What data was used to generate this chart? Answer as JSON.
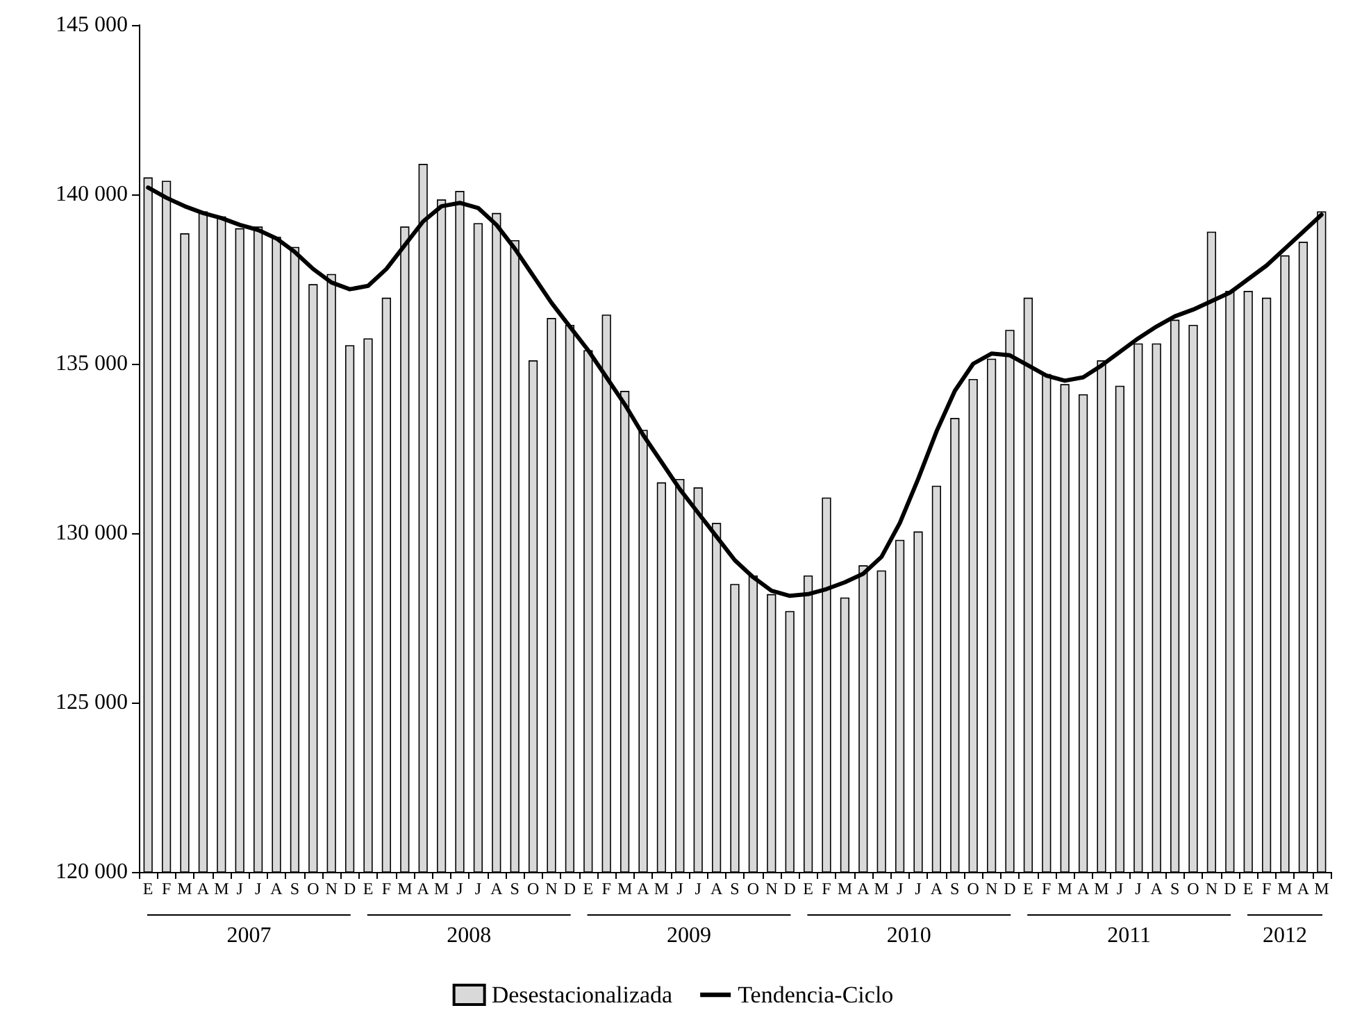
{
  "chart_data": {
    "type": "bar",
    "categories": [
      "E",
      "F",
      "M",
      "A",
      "M",
      "J",
      "J",
      "A",
      "S",
      "O",
      "N",
      "D",
      "E",
      "F",
      "M",
      "A",
      "M",
      "J",
      "J",
      "A",
      "S",
      "O",
      "N",
      "D",
      "E",
      "F",
      "M",
      "A",
      "M",
      "J",
      "J",
      "A",
      "S",
      "O",
      "N",
      "D",
      "E",
      "F",
      "M",
      "A",
      "M",
      "J",
      "J",
      "A",
      "S",
      "O",
      "N",
      "D",
      "E",
      "F",
      "M",
      "A",
      "M",
      "J",
      "J",
      "A",
      "S",
      "O",
      "N",
      "D",
      "E",
      "F",
      "M",
      "A",
      "M"
    ],
    "series": [
      {
        "name": "Desestacionalizada",
        "color": "#d9d9d9",
        "values": [
          140500,
          140400,
          138850,
          139500,
          139350,
          139000,
          139050,
          138750,
          138450,
          137350,
          137650,
          135550,
          135750,
          136950,
          139050,
          140900,
          139850,
          140100,
          139150,
          139450,
          138650,
          135100,
          136350,
          136150,
          135400,
          136450,
          134200,
          133050,
          131500,
          131600,
          131350,
          130300,
          128500,
          128750,
          128200,
          127700,
          128750,
          131050,
          128100,
          129050,
          128900,
          129800,
          130050,
          131400,
          133400,
          134550,
          135150,
          136000,
          136950,
          134700,
          134400,
          134100,
          135100,
          134350,
          135600,
          135600,
          136300,
          136150,
          138900,
          137150,
          137150,
          136950,
          138200,
          138600,
          139500
        ]
      },
      {
        "name": "Tendencia-Ciclo",
        "type": "line",
        "color": "#000000",
        "values": [
          140200,
          139900,
          139650,
          139450,
          139300,
          139100,
          138950,
          138700,
          138300,
          137800,
          137400,
          137200,
          137300,
          137800,
          138500,
          139200,
          139650,
          139750,
          139600,
          139100,
          138400,
          137600,
          136800,
          136100,
          135400,
          134600,
          133800,
          132900,
          132100,
          131300,
          130600,
          129900,
          129200,
          128700,
          128300,
          128150,
          128200,
          128350,
          128550,
          128800,
          129300,
          130300,
          131600,
          133000,
          134200,
          135000,
          135300,
          135250,
          134950,
          134650,
          134500,
          134600,
          134950,
          135350,
          135750,
          136100,
          136400,
          136600,
          136850,
          137100,
          137500,
          137900,
          138400,
          138900,
          139400
        ]
      }
    ],
    "ylim": [
      120000,
      145000
    ],
    "yticks": [
      120000,
      125000,
      130000,
      135000,
      140000,
      145000
    ],
    "annotations": [
      "2007",
      "2008",
      "2009",
      "2010",
      "2011",
      "2012"
    ],
    "legend": "bottom",
    "marker": "none",
    "line_style": "solid"
  }
}
